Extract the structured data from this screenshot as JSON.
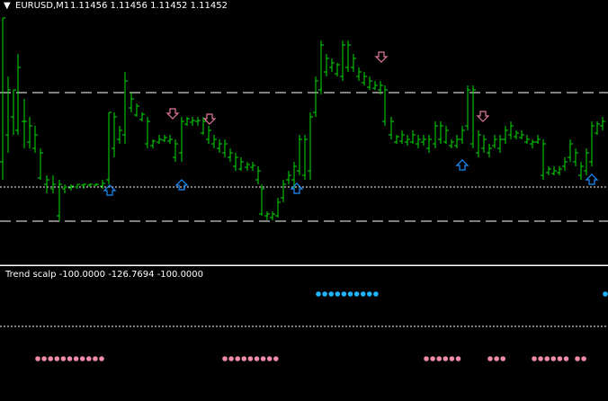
{
  "header": {
    "menu_glyph": "▼",
    "symbol_timeframe": "EURUSD,M1",
    "ohlc": "1.11456 1.11456 1.11452 1.11452"
  },
  "indicator": {
    "label": "Trend scalp -100.0000 -126.7694 -100.0000"
  },
  "colors": {
    "background": "#000000",
    "price_bars": "#00e000",
    "level_lines": "#ffffff",
    "buy_arrow": "#1e90ff",
    "sell_arrow": "#e07a9c",
    "dots_up": "#1eb4ff",
    "dots_down": "#f08ca8"
  },
  "icons": {
    "buy": "arrow-up-outline-icon",
    "sell": "arrow-down-outline-icon",
    "menu": "triangle-down-icon"
  }
}
